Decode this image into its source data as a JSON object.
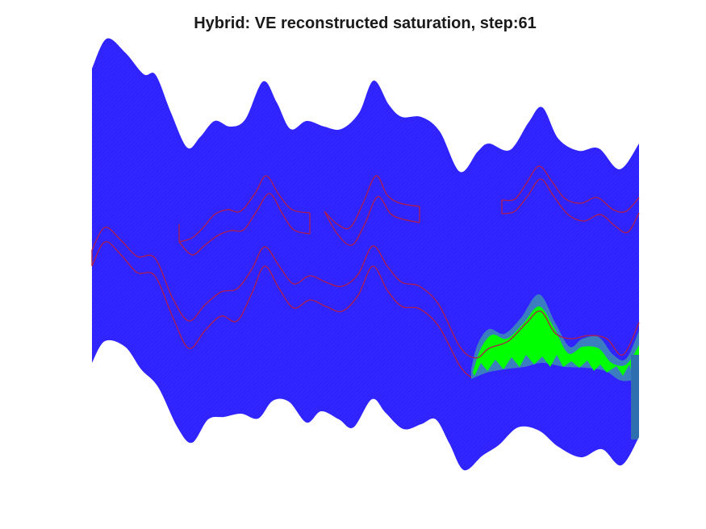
{
  "title": "Hybrid: VE reconstructed saturation, step:61",
  "chart_data": {
    "type": "area",
    "title": "Hybrid: VE reconstructed saturation, step:61",
    "xlabel": "",
    "ylabel": "",
    "axes_visible": false,
    "grid": false,
    "colors": {
      "domain": "#2e22ff",
      "mesh": "#3a30ff",
      "plume": "#00ff00",
      "plume_fringe": "#3a7ec0",
      "plume_edge": "#2f6fb0",
      "layer_outline": "#b01c4a"
    }
  }
}
